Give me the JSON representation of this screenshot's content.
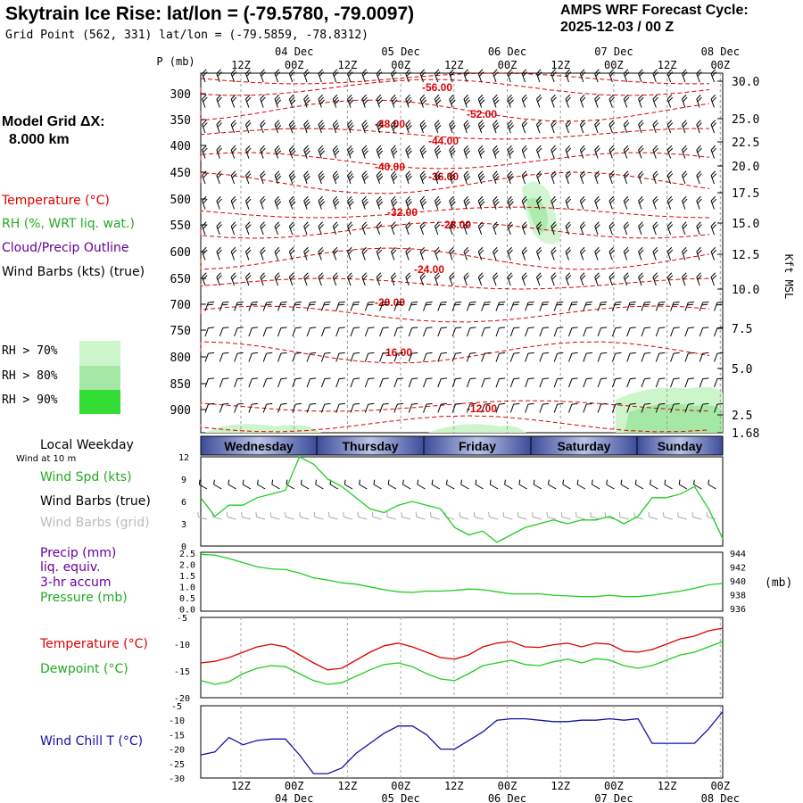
{
  "header": {
    "title": "Skytrain Ice Rise:  lat/lon = (-79.5780, -79.0097)",
    "grid_point": "Grid Point (562, 331) lat/lon = (-79.5859, -78.8312)",
    "cycle_line1": "AMPS WRF Forecast Cycle:",
    "cycle_line2": "2025-12-03 / 00  Z"
  },
  "left_panel": {
    "model_grid_label": "Model Grid ΔX:",
    "model_grid_value": "8.000 km",
    "temp_legend": "Temperature (°C)",
    "rh_legend": "RH (%, WRT liq. wat.)",
    "cloud_legend": "Cloud/Precip Outline",
    "wind_legend": "Wind Barbs (kts) (true)",
    "rh70": "RH > 70%",
    "rh80": "RH > 80%",
    "rh90": "RH > 90%",
    "local_weekday": "Local Weekday",
    "wind_10m": "Wind at 10 m",
    "wind_spd": "Wind Spd (kts)",
    "wind_barbs_true": "Wind Barbs (true)",
    "wind_barbs_grid": "Wind Barbs (grid)",
    "precip_l1": "Precip (mm)",
    "precip_l2": "liq. equiv.",
    "precip_l3": "3-hr accum",
    "pressure": "Pressure (mb)",
    "temperature": "Temperature (°C)",
    "dewpoint": "Dewpoint (°C)",
    "windchill": "Wind Chill T (°C)"
  },
  "colors": {
    "temp": "#dd0000",
    "green": "#22cc22",
    "purple": "#660099",
    "blue": "#1111aa",
    "grey": "#aaaaaa",
    "rh70": "#ccf5cc",
    "rh80": "#a5e8a5",
    "rh90": "#33dd33"
  },
  "time_axis": {
    "ticks": [
      "12Z",
      "00Z",
      "12Z",
      "00Z",
      "12Z",
      "00Z",
      "12Z",
      "00Z",
      "12Z",
      "00Z"
    ],
    "dates": [
      "04 Dec",
      "05 Dec",
      "06 Dec",
      "07 Dec",
      "08 Dec"
    ]
  },
  "weekdays": [
    "Wednesday",
    "Thursday",
    "Friday",
    "Saturday",
    "Sunday"
  ],
  "chart_data": [
    {
      "type": "contour",
      "name": "cross-section",
      "ylabel": "P (mb)",
      "y2label": "Kft MSL",
      "pressure_ticks": [
        "300",
        "350",
        "400",
        "450",
        "500",
        "550",
        "600",
        "650",
        "700",
        "750",
        "800",
        "850",
        "900"
      ],
      "height_ticks": [
        "30.0",
        "25.0",
        "22.5",
        "20.0",
        "17.5",
        "15.0",
        "12.5",
        "10.0",
        "7.5",
        "5.0",
        "2.5",
        "1.68"
      ],
      "temperature_contour_labels": [
        "-56.00",
        "-52.00",
        "-48.00",
        "-44.00",
        "-40.00",
        "-36.00",
        "-32.00",
        "-28.00",
        "-24.00",
        "-20.00",
        "-16.00",
        "-12.00"
      ]
    },
    {
      "type": "line",
      "name": "wind-speed",
      "yticks": [
        "12",
        "9",
        "6",
        "3",
        "0"
      ],
      "ylim": [
        0,
        12
      ],
      "values": [
        6.5,
        4.0,
        5.5,
        5.5,
        6.5,
        7.0,
        7.5,
        12.0,
        11.0,
        9.0,
        8.0,
        6.5,
        5.0,
        4.5,
        5.5,
        6.0,
        5.5,
        5.0,
        2.5,
        1.5,
        2.0,
        0.5,
        1.5,
        2.5,
        3.0,
        3.5,
        3.0,
        3.5,
        3.5,
        4.0,
        3.0,
        4.0,
        6.5,
        6.5,
        7.0,
        8.0,
        5.0,
        1.0
      ]
    },
    {
      "type": "line",
      "name": "pressure",
      "ylabel_left": [
        "2.5",
        "2.0",
        "1.5",
        "1.0",
        "0.5",
        "0.0"
      ],
      "ylabel_right": [
        "944",
        "942",
        "940",
        "938",
        "936"
      ],
      "y2unit": "(mb)",
      "ylim": [
        936,
        944.5
      ],
      "values": [
        944.2,
        944.1,
        943.6,
        943.0,
        942.4,
        942.1,
        942.0,
        941.5,
        940.8,
        940.5,
        940.1,
        939.9,
        939.5,
        939.1,
        938.8,
        938.7,
        938.9,
        938.9,
        939.0,
        939.2,
        939.1,
        938.8,
        938.5,
        938.5,
        938.5,
        938.3,
        938.2,
        938.1,
        938.1,
        938.3,
        938.1,
        938.1,
        938.3,
        938.6,
        938.9,
        939.3,
        939.8,
        940.0
      ]
    },
    {
      "type": "line",
      "name": "temperature-dewpoint",
      "yticks": [
        "-5",
        "-10",
        "-15",
        "-20"
      ],
      "ylim": [
        -20,
        -5
      ],
      "series": [
        {
          "name": "Temperature",
          "values": [
            -13.5,
            -13.2,
            -12.5,
            -11.5,
            -10.5,
            -10.0,
            -10.5,
            -12.0,
            -13.5,
            -14.8,
            -14.5,
            -13.0,
            -11.5,
            -10.3,
            -9.8,
            -10.5,
            -11.5,
            -12.5,
            -12.8,
            -12.0,
            -10.5,
            -9.8,
            -9.5,
            -10.5,
            -10.6,
            -10.1,
            -9.8,
            -10.5,
            -9.8,
            -10.0,
            -11.3,
            -11.5,
            -11.0,
            -10.0,
            -9.0,
            -8.5,
            -7.5,
            -7.0
          ]
        },
        {
          "name": "Dewpoint",
          "values": [
            -16.8,
            -17.5,
            -17.0,
            -15.5,
            -14.5,
            -14.0,
            -14.2,
            -15.5,
            -16.8,
            -17.5,
            -17.2,
            -16.0,
            -14.8,
            -13.8,
            -13.5,
            -14.2,
            -15.5,
            -16.5,
            -16.8,
            -15.5,
            -14.0,
            -13.5,
            -13.0,
            -13.8,
            -14.0,
            -13.3,
            -12.8,
            -13.5,
            -12.7,
            -13.0,
            -14.0,
            -14.5,
            -14.0,
            -13.0,
            -12.0,
            -11.5,
            -10.5,
            -9.5
          ]
        }
      ]
    },
    {
      "type": "line",
      "name": "wind-chill",
      "yticks": [
        "-5",
        "-10",
        "-15",
        "-20",
        "-25",
        "-30"
      ],
      "ylim": [
        -30,
        -5
      ],
      "values": [
        -22.0,
        -21.0,
        -16.0,
        -18.5,
        -17.0,
        -16.5,
        -16.5,
        -22.0,
        -28.5,
        -28.5,
        -26.5,
        -21.5,
        -18.0,
        -14.5,
        -12.0,
        -12.0,
        -15.0,
        -20.0,
        -20.0,
        -17.0,
        -14.0,
        -10.0,
        -9.5,
        -9.5,
        -10.0,
        -10.5,
        -10.5,
        -10.0,
        -10.0,
        -9.5,
        -10.0,
        -9.5,
        -18.0,
        -18.0,
        -18.0,
        -18.0,
        -13.0,
        -7.0
      ]
    }
  ]
}
